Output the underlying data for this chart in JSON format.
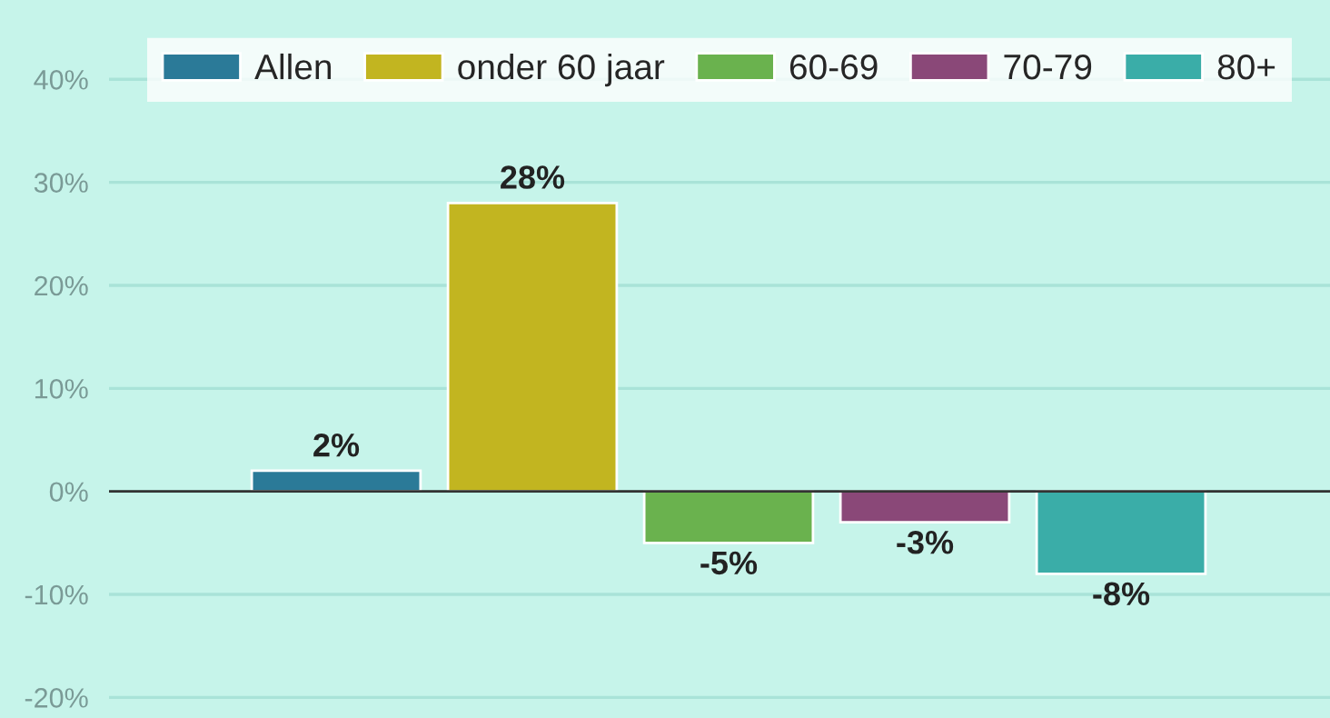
{
  "chart_data": {
    "type": "bar",
    "categories": [
      null,
      null,
      null,
      null,
      null
    ],
    "series": [
      {
        "name": "Allen",
        "color": "#2b7a98",
        "values": [
          2,
          null,
          null,
          null,
          null
        ],
        "value_labels": [
          "2%",
          null,
          null,
          null,
          null
        ]
      },
      {
        "name": "onder 60 jaar",
        "color": "#c2b520",
        "values": [
          null,
          28,
          null,
          null,
          null
        ],
        "value_labels": [
          null,
          "28%",
          null,
          null,
          null
        ]
      },
      {
        "name": "60-69",
        "color": "#6ab24e",
        "values": [
          null,
          null,
          -5,
          null,
          null
        ],
        "value_labels": [
          null,
          null,
          "-5%",
          null,
          null
        ]
      },
      {
        "name": "70-79",
        "color": "#8a4878",
        "values": [
          null,
          null,
          null,
          -3,
          null
        ],
        "value_labels": [
          null,
          null,
          null,
          "-3%",
          null
        ]
      },
      {
        "name": "80+",
        "color": "#3aada8",
        "values": [
          null,
          null,
          null,
          null,
          -8
        ],
        "value_labels": [
          null,
          null,
          null,
          null,
          "-8%"
        ]
      }
    ],
    "ylim": [
      -22,
      47.7
    ],
    "yticks": [
      {
        "value": -20,
        "label": "-20%"
      },
      {
        "value": -10,
        "label": "-10%"
      },
      {
        "value": 0,
        "label": "0%"
      },
      {
        "value": 10,
        "label": "10%"
      },
      {
        "value": 20,
        "label": "20%"
      },
      {
        "value": 30,
        "label": "30%"
      },
      {
        "value": 40,
        "label": "40%"
      }
    ],
    "grid": "y",
    "legend": "top"
  }
}
